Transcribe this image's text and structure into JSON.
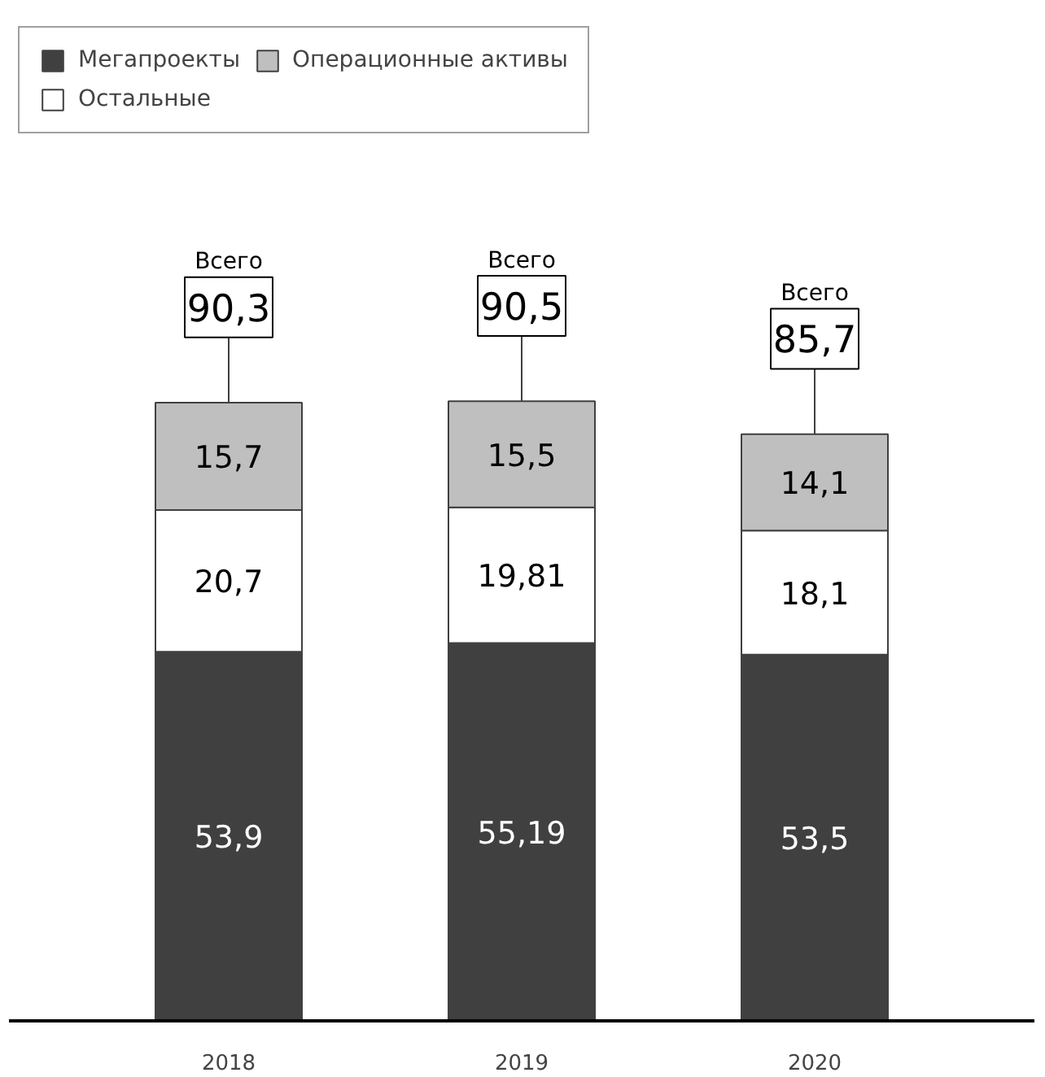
{
  "chart_data": {
    "type": "bar",
    "stacked": true,
    "categories": [
      "2018",
      "2019",
      "2020"
    ],
    "series": [
      {
        "name": "Мегапроекты",
        "color": "#404040",
        "values": [
          53.9,
          55.19,
          53.5
        ],
        "value_labels": [
          "53,9",
          "55,19",
          "53,5"
        ]
      },
      {
        "name": "Остальные",
        "color": "#ffffff",
        "values": [
          20.7,
          19.81,
          18.1
        ],
        "value_labels": [
          "20,7",
          "19,81",
          "18,1"
        ]
      },
      {
        "name": "Операционные активы",
        "color": "#bfbfbf",
        "values": [
          15.7,
          15.5,
          14.1
        ],
        "value_labels": [
          "15,7",
          "15,5",
          "14,1"
        ]
      }
    ],
    "totals": [
      "90,3",
      "90,5",
      "85,7"
    ],
    "annotations": [
      "Всего",
      "Всего",
      "Всего"
    ],
    "legend": "top",
    "grid": false
  }
}
